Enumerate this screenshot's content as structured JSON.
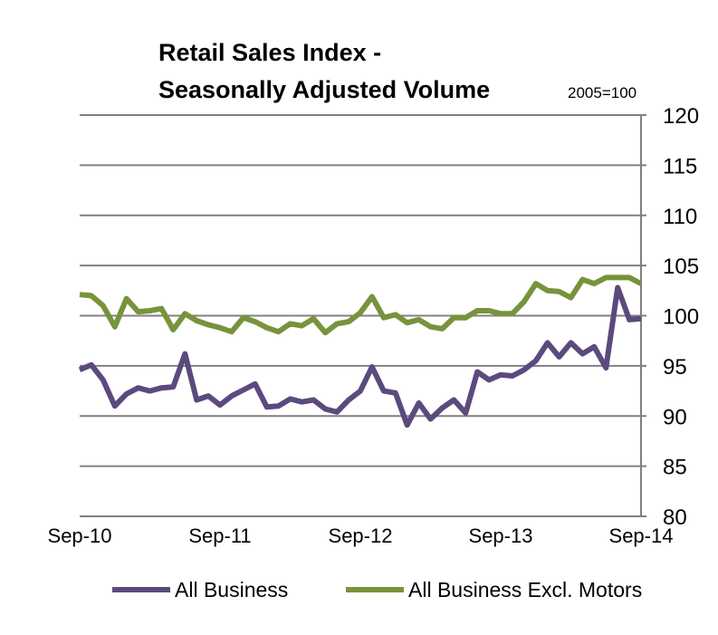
{
  "chart_data": {
    "type": "line",
    "title_line1": "Retail Sales Index -",
    "title_line2": "Seasonally Adjusted Volume",
    "unit_label": "2005=100",
    "ylim": [
      80,
      120
    ],
    "yticks": [
      80,
      85,
      90,
      95,
      100,
      105,
      110,
      115,
      120
    ],
    "x_tick_labels": [
      "Sep-10",
      "Sep-11",
      "Sep-12",
      "Sep-13",
      "Sep-14"
    ],
    "grid": true,
    "legend_position": "bottom",
    "colors": {
      "all_business": "#5b4a7e",
      "excl_motors": "#77933c",
      "grid": "#808080"
    },
    "series": [
      {
        "name": "All Business",
        "values": [
          94.6,
          95.1,
          93.6,
          91.0,
          92.2,
          92.8,
          92.5,
          92.8,
          92.9,
          96.2,
          91.6,
          92.0,
          91.1,
          92.0,
          92.6,
          93.2,
          90.9,
          91.0,
          91.7,
          91.4,
          91.6,
          90.7,
          90.4,
          91.6,
          92.5,
          94.9,
          92.5,
          92.3,
          89.1,
          91.3,
          89.7,
          90.8,
          91.6,
          90.3,
          94.4,
          93.6,
          94.1,
          94.0,
          94.6,
          95.5,
          97.3,
          95.9,
          97.3,
          96.2,
          96.9,
          94.8,
          102.8,
          99.6,
          99.7
        ]
      },
      {
        "name": "All Business Excl. Motors",
        "values": [
          102.1,
          102.0,
          101.0,
          98.9,
          101.7,
          100.4,
          100.5,
          100.7,
          98.6,
          100.2,
          99.5,
          99.1,
          98.8,
          98.4,
          99.8,
          99.4,
          98.8,
          98.4,
          99.2,
          99.0,
          99.7,
          98.3,
          99.2,
          99.4,
          100.3,
          101.9,
          99.8,
          100.1,
          99.3,
          99.6,
          98.9,
          98.7,
          99.8,
          99.8,
          100.5,
          100.5,
          100.2,
          100.2,
          101.4,
          103.2,
          102.5,
          102.4,
          101.8,
          103.6,
          103.2,
          103.8,
          103.8,
          103.8,
          103.2
        ]
      }
    ]
  }
}
